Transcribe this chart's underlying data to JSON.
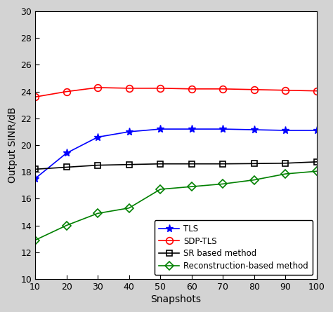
{
  "snapshots": [
    10,
    20,
    30,
    40,
    50,
    60,
    70,
    80,
    90,
    100
  ],
  "TLS": [
    17.5,
    19.4,
    20.6,
    21.0,
    21.2,
    21.2,
    21.2,
    21.15,
    21.1,
    21.1
  ],
  "SDP_TLS": [
    23.6,
    24.0,
    24.3,
    24.25,
    24.25,
    24.2,
    24.2,
    24.15,
    24.1,
    24.05
  ],
  "SR": [
    18.2,
    18.35,
    18.5,
    18.55,
    18.6,
    18.6,
    18.6,
    18.62,
    18.65,
    18.75
  ],
  "Recon": [
    12.9,
    14.0,
    14.9,
    15.3,
    16.7,
    16.9,
    17.1,
    17.4,
    17.85,
    18.05
  ],
  "TLS_color": "#0000ff",
  "SDP_TLS_color": "#ff0000",
  "SR_color": "#000000",
  "Recon_color": "#008000",
  "xlabel": "Snapshots",
  "ylabel": "Output SINR/dB",
  "xlim": [
    10,
    100
  ],
  "ylim": [
    10,
    30
  ],
  "xticks": [
    10,
    20,
    30,
    40,
    50,
    60,
    70,
    80,
    90,
    100
  ],
  "yticks": [
    10,
    12,
    14,
    16,
    18,
    20,
    22,
    24,
    26,
    28,
    30
  ],
  "legend_labels": [
    "TLS",
    "SDP-TLS",
    "SR based method",
    "Reconstruction-based method"
  ],
  "plot_bg": "#ffffff",
  "fig_bg": "#d3d3d3"
}
